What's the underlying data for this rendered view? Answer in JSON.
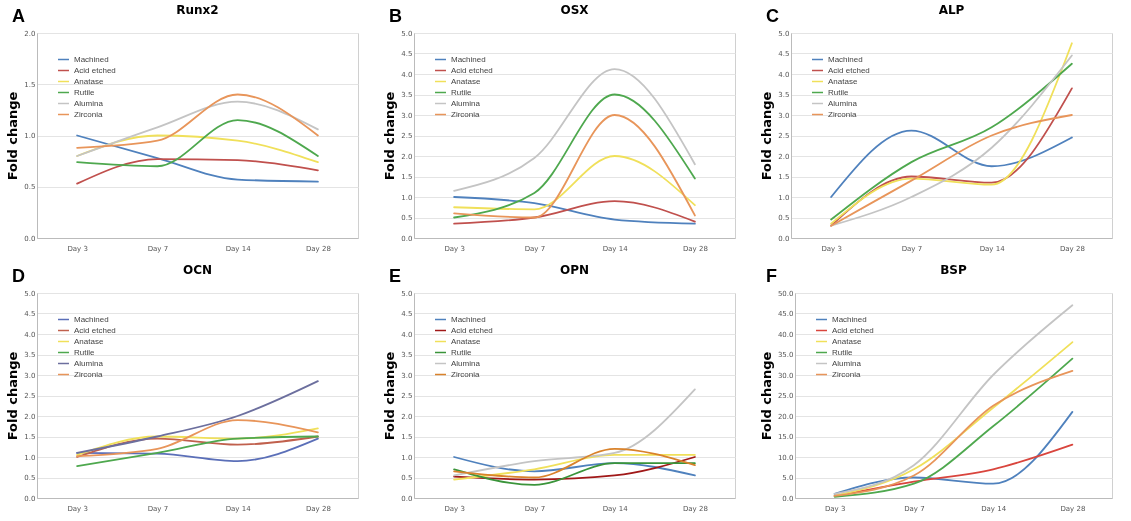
{
  "chart_data": [
    {
      "type": "line",
      "title": "Runx2",
      "annotations": [
        "A"
      ],
      "ylabel": "Fold change",
      "categories": [
        "Day 3",
        "Day 7",
        "Day 14",
        "Day 28"
      ],
      "ylim": [
        0,
        2
      ],
      "yticks": [
        {
          "value": 0,
          "label": "0.0"
        },
        {
          "value": 0.5,
          "label": "0.5"
        },
        {
          "value": 1,
          "label": "1.0"
        },
        {
          "value": 1.5,
          "label": "1.5"
        },
        {
          "value": 2,
          "label": "2.0"
        }
      ],
      "grid": "y",
      "legend": "top left",
      "line_style": "solid",
      "series": [
        {
          "name": "Machined",
          "color": "#4f81bd",
          "values": [
            1.0,
            0.78,
            0.57,
            0.55
          ]
        },
        {
          "name": "Acid etched",
          "color": "#c0504d",
          "values": [
            0.53,
            0.77,
            0.76,
            0.66
          ]
        },
        {
          "name": "Anatase",
          "color": "#f0e05a",
          "values": [
            0.8,
            1.0,
            0.95,
            0.74
          ]
        },
        {
          "name": "Rutile",
          "color": "#4ea84e",
          "values": [
            0.74,
            0.7,
            1.15,
            0.8
          ]
        },
        {
          "name": "Alumina",
          "color": "#c4c4c4",
          "values": [
            0.8,
            1.08,
            1.33,
            1.06
          ]
        },
        {
          "name": "Zirconia",
          "color": "#e8955a",
          "values": [
            0.88,
            0.95,
            1.4,
            1.0
          ]
        }
      ]
    },
    {
      "type": "line",
      "title": "OSX",
      "annotations": [
        "B"
      ],
      "ylabel": "Fold change",
      "categories": [
        "Day 3",
        "Day 7",
        "Day 14",
        "Day 28"
      ],
      "ylim": [
        0,
        5
      ],
      "yticks": [
        {
          "value": 0,
          "label": "0.0"
        },
        {
          "value": 0.5,
          "label": "0.5"
        },
        {
          "value": 1,
          "label": "1.0"
        },
        {
          "value": 1.5,
          "label": "1.5"
        },
        {
          "value": 2,
          "label": "2.0"
        },
        {
          "value": 2.5,
          "label": "2.5"
        },
        {
          "value": 3,
          "label": "3.0"
        },
        {
          "value": 3.5,
          "label": "3.5"
        },
        {
          "value": 4,
          "label": "4.0"
        },
        {
          "value": 4.5,
          "label": "4.5"
        },
        {
          "value": 5,
          "label": "5.0"
        }
      ],
      "grid": "y",
      "legend": "top left",
      "line_style": "solid",
      "series": [
        {
          "name": "Machined",
          "color": "#4f81bd",
          "values": [
            1.0,
            0.85,
            0.45,
            0.35
          ]
        },
        {
          "name": "Acid etched",
          "color": "#c0504d",
          "values": [
            0.35,
            0.5,
            0.9,
            0.4
          ]
        },
        {
          "name": "Anatase",
          "color": "#f0e05a",
          "values": [
            0.75,
            0.7,
            2.0,
            0.8
          ]
        },
        {
          "name": "Rutile",
          "color": "#4ea84e",
          "values": [
            0.5,
            1.1,
            3.5,
            1.45
          ]
        },
        {
          "name": "Alumina",
          "color": "#c4c4c4",
          "values": [
            1.15,
            1.95,
            4.12,
            1.8
          ]
        },
        {
          "name": "Zirconia",
          "color": "#e8955a",
          "values": [
            0.6,
            0.5,
            3.0,
            0.55
          ]
        }
      ]
    },
    {
      "type": "line",
      "title": "ALP",
      "annotations": [
        "C"
      ],
      "ylabel": "Fold change",
      "categories": [
        "Day 3",
        "Day 7",
        "Day 14",
        "Day 28"
      ],
      "ylim": [
        0,
        5
      ],
      "yticks": [
        {
          "value": 0,
          "label": "0.0"
        },
        {
          "value": 0.5,
          "label": "0.5"
        },
        {
          "value": 1,
          "label": "1.0"
        },
        {
          "value": 1.5,
          "label": "1.5"
        },
        {
          "value": 2,
          "label": "2.0"
        },
        {
          "value": 2.5,
          "label": "2.5"
        },
        {
          "value": 3,
          "label": "3.0"
        },
        {
          "value": 3.5,
          "label": "3.5"
        },
        {
          "value": 4,
          "label": "4.0"
        },
        {
          "value": 4.5,
          "label": "4.5"
        },
        {
          "value": 5,
          "label": "5.0"
        }
      ],
      "grid": "y",
      "legend": "top left",
      "line_style": "solid",
      "series": [
        {
          "name": "Machined",
          "color": "#4f81bd",
          "values": [
            1.0,
            2.62,
            1.75,
            2.45
          ]
        },
        {
          "name": "Acid etched",
          "color": "#c0504d",
          "values": [
            0.3,
            1.5,
            1.35,
            3.65
          ]
        },
        {
          "name": "Anatase",
          "color": "#f0e05a",
          "values": [
            0.35,
            1.45,
            1.3,
            4.75
          ]
        },
        {
          "name": "Rutile",
          "color": "#4ea84e",
          "values": [
            0.45,
            1.85,
            2.7,
            4.25
          ]
        },
        {
          "name": "Alumina",
          "color": "#c4c4c4",
          "values": [
            0.3,
            1.0,
            2.2,
            4.45
          ]
        },
        {
          "name": "Zirconia",
          "color": "#e8955a",
          "values": [
            0.3,
            1.4,
            2.5,
            3.0
          ]
        }
      ]
    },
    {
      "type": "line",
      "title": "OCN",
      "annotations": [
        "D"
      ],
      "ylabel": "Fold change",
      "categories": [
        "Day 3",
        "Day 7",
        "Day 14",
        "Day 28"
      ],
      "ylim": [
        0,
        5
      ],
      "yticks": [
        {
          "value": 0,
          "label": "0.0"
        },
        {
          "value": 0.5,
          "label": "0.5"
        },
        {
          "value": 1,
          "label": "1.0"
        },
        {
          "value": 1.5,
          "label": "1.5"
        },
        {
          "value": 2,
          "label": "2.0"
        },
        {
          "value": 2.5,
          "label": "2.5"
        },
        {
          "value": 3,
          "label": "3.0"
        },
        {
          "value": 3.5,
          "label": "3.5"
        },
        {
          "value": 4,
          "label": "4.0"
        },
        {
          "value": 4.5,
          "label": "4.5"
        },
        {
          "value": 5,
          "label": "5.0"
        }
      ],
      "grid": "y",
      "legend": "top left",
      "line_style": "solid",
      "series": [
        {
          "name": "Machined",
          "color": "#5b6fb8",
          "values": [
            1.1,
            1.08,
            0.9,
            1.45
          ]
        },
        {
          "name": "Acid etched",
          "color": "#c0604d",
          "values": [
            1.0,
            1.45,
            1.3,
            1.5
          ]
        },
        {
          "name": "Anatase",
          "color": "#f0e05a",
          "values": [
            1.05,
            1.5,
            1.45,
            1.7
          ]
        },
        {
          "name": "Rutile",
          "color": "#4ea84e",
          "values": [
            0.78,
            1.1,
            1.45,
            1.5
          ]
        },
        {
          "name": "Alumina",
          "color": "#6c6f9e",
          "values": [
            1.1,
            1.5,
            2.0,
            2.85
          ]
        },
        {
          "name": "Zirconia",
          "color": "#e8955a",
          "values": [
            1.02,
            1.2,
            1.9,
            1.6
          ]
        }
      ]
    },
    {
      "type": "line",
      "title": "OPN",
      "annotations": [
        "E"
      ],
      "ylabel": "Fold change",
      "categories": [
        "Day 3",
        "Day 7",
        "Day 14",
        "Day 28"
      ],
      "ylim": [
        0,
        5
      ],
      "yticks": [
        {
          "value": 0,
          "label": "0.0"
        },
        {
          "value": 0.5,
          "label": "0.5"
        },
        {
          "value": 1,
          "label": "1.0"
        },
        {
          "value": 1.5,
          "label": "1.5"
        },
        {
          "value": 2,
          "label": "2.0"
        },
        {
          "value": 2.5,
          "label": "2.5"
        },
        {
          "value": 3,
          "label": "3.0"
        },
        {
          "value": 3.5,
          "label": "3.5"
        },
        {
          "value": 4,
          "label": "4.0"
        },
        {
          "value": 4.5,
          "label": "4.5"
        },
        {
          "value": 5,
          "label": "5.0"
        }
      ],
      "grid": "y",
      "legend": "top left",
      "line_style": "solid",
      "series": [
        {
          "name": "Machined",
          "color": "#4f81bd",
          "values": [
            1.0,
            0.65,
            0.85,
            0.55
          ]
        },
        {
          "name": "Acid etched",
          "color": "#a01818",
          "values": [
            0.52,
            0.45,
            0.55,
            1.0
          ]
        },
        {
          "name": "Anatase",
          "color": "#f0e05a",
          "values": [
            0.45,
            0.7,
            1.05,
            1.05
          ]
        },
        {
          "name": "Rutile",
          "color": "#3a943a",
          "values": [
            0.7,
            0.32,
            0.85,
            0.85
          ]
        },
        {
          "name": "Alumina",
          "color": "#c4c4c4",
          "values": [
            0.55,
            0.9,
            1.1,
            2.65
          ]
        },
        {
          "name": "Zirconia",
          "color": "#d9822b",
          "values": [
            0.65,
            0.5,
            1.2,
            0.8
          ]
        }
      ]
    },
    {
      "type": "line",
      "title": "BSP",
      "annotations": [
        "F"
      ],
      "ylabel": "Fold change",
      "categories": [
        "Day 3",
        "Day 7",
        "Day 14",
        "Day 28"
      ],
      "ylim": [
        0,
        50
      ],
      "yticks": [
        {
          "value": 0,
          "label": "0.0"
        },
        {
          "value": 5,
          "label": "5.0"
        },
        {
          "value": 10,
          "label": "10.0"
        },
        {
          "value": 15,
          "label": "15.0"
        },
        {
          "value": 20,
          "label": "20.0"
        },
        {
          "value": 25,
          "label": "25.0"
        },
        {
          "value": 30,
          "label": "30.0"
        },
        {
          "value": 35,
          "label": "35.0"
        },
        {
          "value": 40,
          "label": "40.0"
        },
        {
          "value": 45,
          "label": "45.0"
        },
        {
          "value": 50,
          "label": "50.0"
        }
      ],
      "grid": "y",
      "legend": "top left",
      "line_style": "solid",
      "series": [
        {
          "name": "Machined",
          "color": "#4f81bd",
          "values": [
            1.0,
            5.0,
            3.5,
            21.0
          ]
        },
        {
          "name": "Acid etched",
          "color": "#d9453d",
          "values": [
            0.5,
            4.0,
            7.0,
            13.0
          ]
        },
        {
          "name": "Anatase",
          "color": "#f0e05a",
          "values": [
            0.5,
            7.0,
            22.0,
            38.0
          ]
        },
        {
          "name": "Rutile",
          "color": "#4ea84e",
          "values": [
            0.3,
            3.5,
            17.5,
            34.0
          ]
        },
        {
          "name": "Alumina",
          "color": "#c4c4c4",
          "values": [
            1.0,
            8.0,
            30.0,
            47.0
          ]
        },
        {
          "name": "Zirconia",
          "color": "#e8955a",
          "values": [
            0.5,
            5.5,
            22.5,
            31.0
          ]
        }
      ]
    }
  ]
}
